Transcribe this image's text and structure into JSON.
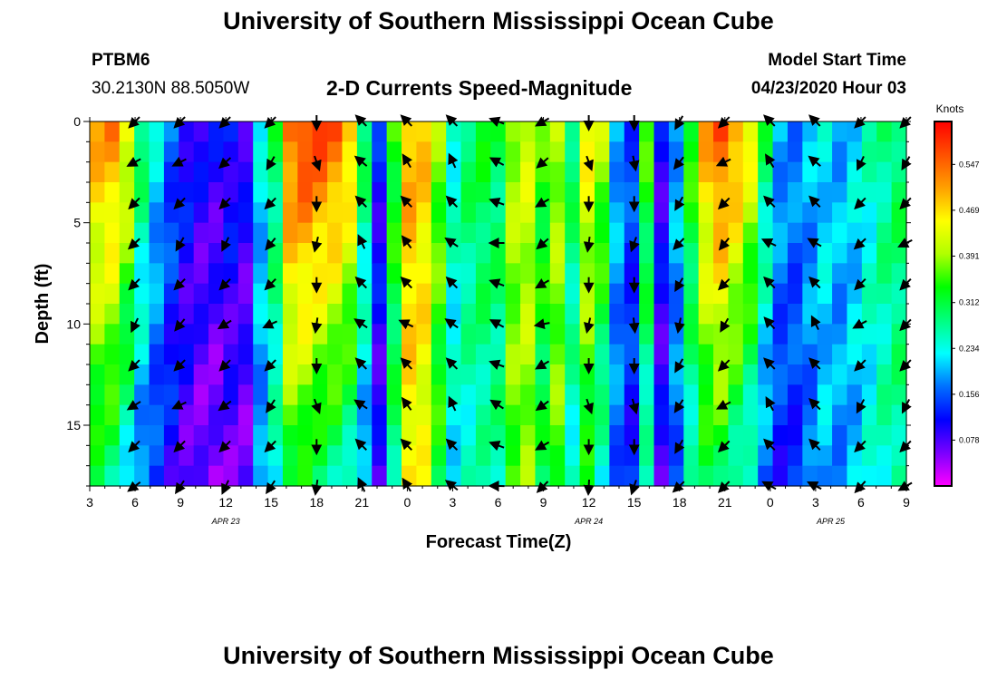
{
  "header": {
    "title": "University of Southern Mississippi Ocean Cube",
    "station_id": "PTBM6",
    "station_coords": "30.2130N 88.5050W",
    "chart_title": "2-D Currents Speed-Magnitude",
    "model_start_label": "Model Start Time",
    "model_start_value": "04/23/2020 Hour 03"
  },
  "footer": {
    "title": "University of Southern Mississippi Ocean Cube"
  },
  "colors": {
    "background": "#ffffff",
    "text": "#000000",
    "colorbar_stops": [
      "#ff00ff",
      "#7a00ff",
      "#0000ff",
      "#0070ff",
      "#00ffff",
      "#00ff7f",
      "#00ff00",
      "#b0ff00",
      "#ffff00",
      "#ffa000",
      "#ff5000",
      "#ff0000"
    ]
  },
  "chart_data": {
    "type": "heatmap",
    "title": "2-D Currents Speed-Magnitude",
    "xlabel": "Forecast Time(Z)",
    "ylabel": "Depth (ft)",
    "x_tick_labels": [
      "3",
      "6",
      "9",
      "12",
      "15",
      "18",
      "21",
      "0",
      "3",
      "6",
      "9",
      "12",
      "15",
      "18",
      "21",
      "0",
      "3",
      "6",
      "9"
    ],
    "x_hours": [
      0,
      3,
      6,
      9,
      12,
      15,
      18,
      21,
      24,
      27,
      30,
      33,
      36,
      39,
      42,
      45,
      48,
      51,
      54
    ],
    "x_range_hours": [
      0,
      54
    ],
    "date_labels": [
      {
        "text": "APR 23",
        "hour": 9
      },
      {
        "text": "APR 24",
        "hour": 33
      },
      {
        "text": "APR 25",
        "hour": 49
      }
    ],
    "y_ticks": [
      0,
      5,
      10,
      15
    ],
    "y_range": [
      0,
      18
    ],
    "y_reversed": true,
    "colorbar": {
      "title": "Knots",
      "tick_labels": [
        "0.547",
        "0.469",
        "0.391",
        "0.312",
        "0.234",
        "0.156",
        "0.078"
      ],
      "range": [
        0.0,
        0.62
      ]
    },
    "speed_profile_knots": [
      0.5,
      0.52,
      0.45,
      0.3,
      0.22,
      0.16,
      0.12,
      0.1,
      0.1,
      0.12,
      0.1,
      0.22,
      0.3,
      0.55,
      0.58,
      0.57,
      0.55,
      0.5,
      0.3,
      0.12,
      0.35,
      0.5,
      0.48,
      0.38,
      0.25,
      0.3,
      0.32,
      0.3,
      0.4,
      0.42,
      0.35,
      0.4,
      0.3,
      0.45,
      0.4,
      0.2,
      0.15,
      0.35,
      0.1,
      0.2,
      0.35,
      0.5,
      0.56,
      0.52,
      0.45,
      0.3,
      0.2,
      0.18,
      0.2,
      0.22,
      0.2,
      0.22,
      0.25,
      0.28,
      0.3
    ],
    "depth_decay": [
      0.4,
      0.45,
      0.5,
      0.45,
      0.4,
      0.35,
      0.4,
      0.45,
      0.5,
      0.45,
      0.4,
      0.2,
      0.2,
      0.4,
      0.45,
      0.5,
      0.5,
      0.5,
      0.4,
      0.3,
      0.2,
      0.1,
      0.1,
      0.15,
      0.1,
      0.2,
      0.2,
      0.1,
      0.1,
      0.1,
      0.15,
      0.1,
      0.2,
      0.3,
      0.4,
      0.2,
      0.2,
      0.3,
      0.1,
      0.2,
      0.3,
      0.4,
      0.45,
      0.5,
      0.5,
      0.45,
      0.4,
      0.3,
      0.2,
      0.1,
      0.1,
      0.1,
      0.1,
      0.1,
      0.1
    ],
    "arrow_hours": [
      3,
      6,
      9,
      12,
      15,
      18,
      21,
      24,
      27,
      30,
      33,
      36,
      39,
      42,
      45,
      48,
      51,
      54
    ],
    "arrow_depths": [
      0,
      2,
      4,
      6,
      8,
      10,
      12,
      14,
      16,
      18
    ],
    "arrow_directions_deg": [
      135,
      135,
      135,
      135,
      90,
      225,
      225,
      225,
      200,
      150,
      90,
      90,
      120,
      135,
      225,
      225,
      135,
      135
    ]
  }
}
